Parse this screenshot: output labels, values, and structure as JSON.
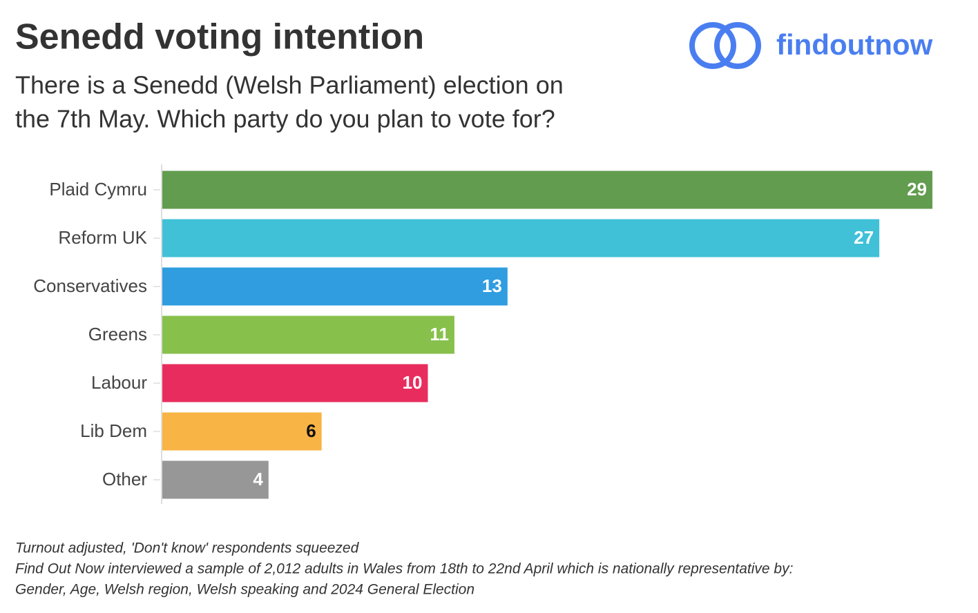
{
  "chart_data": {
    "type": "bar",
    "orientation": "horizontal",
    "title": "Senedd voting intention",
    "subtitle": [
      "There is a Senedd (Welsh Parliament) election on",
      "the 7th May. Which party do you plan to vote for?"
    ],
    "brand": "findoutnow",
    "categories": [
      "Plaid Cymru",
      "Reform UK",
      "Conservatives",
      "Greens",
      "Labour",
      "Lib Dem",
      "Other"
    ],
    "values": [
      29,
      27,
      13,
      11,
      10,
      6,
      4
    ],
    "colors": [
      "#629c4f",
      "#40c1d8",
      "#2f9de0",
      "#88c04c",
      "#e82d5e",
      "#f8b445",
      "#979797"
    ],
    "notes": [
      "Turnout adjusted, 'Don't know' respondents squeezed",
      "Find Out Now interviewed a sample of 2,012 adults in Wales from 18th to 22nd April which is nationally representative by:",
      "Gender, Age, Welsh region, Welsh speaking and 2024 General Election"
    ]
  }
}
